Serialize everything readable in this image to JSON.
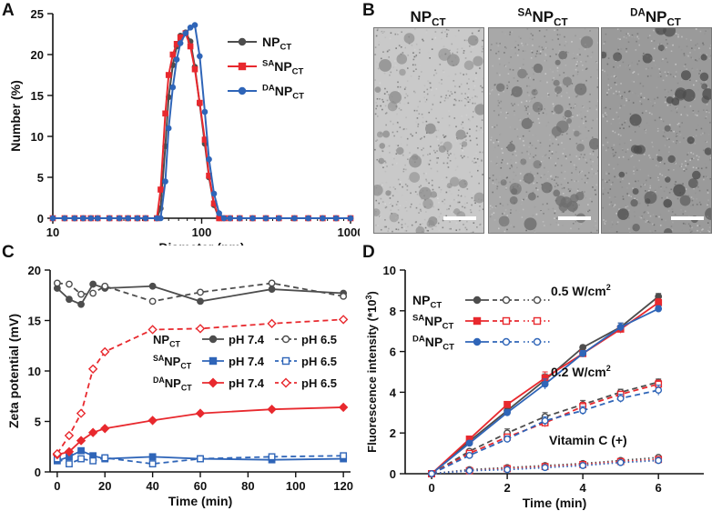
{
  "panels": {
    "a": {
      "label": "A"
    },
    "b": {
      "label": "B"
    },
    "c": {
      "label": "C"
    },
    "d": {
      "label": "D"
    }
  },
  "chart_data": [
    {
      "panel": "A",
      "type": "line",
      "xscale": "log",
      "xlabel": "Diameter (nm)",
      "ylabel": "Number (%)",
      "xlim": [
        10,
        1000
      ],
      "ylim": [
        0,
        25
      ],
      "xticks": [
        10,
        100,
        1000
      ],
      "yticks": [
        0,
        5,
        10,
        15,
        20,
        25
      ],
      "legend_position": "top-right",
      "series": [
        {
          "name": "NP",
          "sub": "CT",
          "sup": "",
          "color": "#4d4d4d",
          "x": [
            10,
            12,
            14,
            16,
            18,
            20,
            24,
            28,
            32,
            37,
            42,
            50,
            53,
            57,
            60,
            64,
            68,
            72,
            78,
            84,
            90,
            97,
            105,
            112,
            121,
            131,
            141,
            155,
            180,
            220,
            270,
            330,
            420,
            520,
            650,
            800,
            1000
          ],
          "y": [
            0,
            0,
            0,
            0,
            0,
            0,
            0,
            0,
            0,
            0,
            0,
            0,
            1.2,
            8.8,
            14.8,
            18.7,
            21.0,
            22.3,
            22.7,
            21.6,
            18.5,
            14.0,
            9.1,
            5.0,
            1.6,
            0,
            0,
            0,
            0,
            0,
            0,
            0,
            0,
            0,
            0,
            0,
            0
          ]
        },
        {
          "name": "NP",
          "sub": "CT",
          "sup": "SA",
          "color": "#e8292e",
          "x": [
            10,
            12,
            14,
            16,
            18,
            20,
            24,
            28,
            32,
            37,
            42,
            50,
            53,
            57,
            60,
            64,
            68,
            72,
            78,
            84,
            90,
            97,
            105,
            112,
            121,
            131,
            141,
            155,
            180,
            220,
            270,
            330,
            420,
            520,
            650,
            800,
            1000
          ],
          "y": [
            0,
            0,
            0,
            0,
            0,
            0,
            0,
            0,
            0,
            0,
            0,
            0,
            3.5,
            12.8,
            17.5,
            20.0,
            21.3,
            22.1,
            22.6,
            21.0,
            18.2,
            14.1,
            9.6,
            5.2,
            1.8,
            0,
            0,
            0,
            0,
            0,
            0,
            0,
            0,
            0,
            0,
            0,
            0
          ]
        },
        {
          "name": "NP",
          "sub": "CT",
          "sup": "DA",
          "color": "#2f65b8",
          "x": [
            10,
            12,
            14,
            16,
            18,
            20,
            24,
            28,
            32,
            37,
            42,
            50,
            53,
            57,
            60,
            64,
            68,
            72,
            78,
            84,
            90,
            97,
            105,
            112,
            121,
            131,
            141,
            155,
            180,
            220,
            270,
            330,
            420,
            520,
            650,
            800,
            1000
          ],
          "y": [
            0,
            0,
            0,
            0,
            0,
            0,
            0,
            0,
            0,
            0,
            0,
            0,
            0,
            4.5,
            11.0,
            16.0,
            19.4,
            21.4,
            22.6,
            23.3,
            23.6,
            19.8,
            13.0,
            7.2,
            3.0,
            0.6,
            0,
            0,
            0,
            0,
            0,
            0,
            0,
            0,
            0,
            0,
            0
          ]
        }
      ]
    },
    {
      "panel": "C",
      "type": "line",
      "xlabel": "Time (min)",
      "ylabel": "Zeta potential (mV)",
      "xlim": [
        -3,
        123
      ],
      "ylim": [
        0,
        20
      ],
      "xticks": [
        0,
        20,
        40,
        60,
        80,
        100,
        120
      ],
      "yticks": [
        0,
        5,
        10,
        15,
        20
      ],
      "legend_position": "center-right",
      "legend_rows": [
        {
          "name": "NP",
          "sub": "CT",
          "sup": "",
          "color": "#4d4d4d",
          "ph_a": "pH 7.4",
          "ph_b": "pH 6.5"
        },
        {
          "name": "NP",
          "sub": "CT",
          "sup": "SA",
          "color": "#2f65b8",
          "ph_a": "pH 7.4",
          "ph_b": "pH 6.5"
        },
        {
          "name": "NP",
          "sub": "CT",
          "sup": "DA",
          "color": "#e8292e",
          "ph_a": "pH 7.4",
          "ph_b": "pH 6.5"
        }
      ],
      "series": [
        {
          "name": "NPCT pH 7.4",
          "color": "#4d4d4d",
          "style": "solid",
          "marker": "circle",
          "filled": true,
          "x": [
            0,
            5,
            10,
            15,
            20,
            40,
            60,
            90,
            120
          ],
          "y": [
            18.2,
            17.1,
            16.6,
            18.6,
            18.2,
            18.4,
            16.9,
            18.1,
            17.7
          ]
        },
        {
          "name": "NPCT pH 6.5",
          "color": "#4d4d4d",
          "style": "dashed",
          "marker": "circle",
          "filled": false,
          "x": [
            0,
            5,
            10,
            15,
            20,
            40,
            60,
            90,
            120
          ],
          "y": [
            18.7,
            18.6,
            17.6,
            17.7,
            18.4,
            16.9,
            17.8,
            18.7,
            17.4
          ]
        },
        {
          "name": "SANPCT pH 7.4",
          "color": "#2f65b8",
          "style": "solid",
          "marker": "square",
          "filled": true,
          "x": [
            0,
            5,
            10,
            15,
            20,
            40,
            60,
            90,
            120
          ],
          "y": [
            1.1,
            1.5,
            2.1,
            1.6,
            1.3,
            1.5,
            1.3,
            1.2,
            1.3
          ]
        },
        {
          "name": "SANPCT pH 6.5",
          "color": "#2f65b8",
          "style": "dashed",
          "marker": "square",
          "filled": false,
          "x": [
            0,
            5,
            10,
            15,
            20,
            40,
            60,
            90,
            120
          ],
          "y": [
            1.3,
            0.8,
            1.3,
            1.1,
            1.4,
            0.8,
            1.3,
            1.5,
            1.6
          ]
        },
        {
          "name": "DANPCT pH 7.4",
          "color": "#e8292e",
          "style": "solid",
          "marker": "diamond",
          "filled": true,
          "x": [
            0,
            5,
            10,
            15,
            20,
            40,
            60,
            90,
            120
          ],
          "y": [
            1.7,
            2.0,
            3.1,
            3.9,
            4.3,
            5.1,
            5.8,
            6.2,
            6.4
          ]
        },
        {
          "name": "DANPCT pH 6.5",
          "color": "#e8292e",
          "style": "dashed",
          "marker": "diamond",
          "filled": false,
          "x": [
            0,
            5,
            10,
            15,
            20,
            40,
            60,
            90,
            120
          ],
          "y": [
            1.8,
            3.6,
            5.8,
            10.2,
            11.9,
            14.1,
            14.2,
            14.7,
            15.1
          ]
        }
      ]
    },
    {
      "panel": "D",
      "type": "line",
      "xlabel": "Time (min)",
      "ylabel": "Fluorescence intensity (*10",
      "ylabel_sup": "3",
      "ylabel_end": ")",
      "xlim": [
        -0.7,
        7.2
      ],
      "ylim": [
        0,
        10
      ],
      "xticks": [
        0,
        2,
        4,
        6
      ],
      "yticks": [
        0,
        2,
        4,
        6,
        8,
        10
      ],
      "legend_position": "top-left",
      "legend_rows": [
        {
          "name": "NP",
          "sub": "CT",
          "sup": "",
          "color": "#4d4d4d"
        },
        {
          "name": "NP",
          "sub": "CT",
          "sup": "SA",
          "color": "#e8292e"
        },
        {
          "name": "NP",
          "sub": "CT",
          "sup": "DA",
          "color": "#2f65b8"
        }
      ],
      "annotations": [
        {
          "text": "0.5 W/cm",
          "sup": "2"
        },
        {
          "text": "0.2 W/cm",
          "sup": "2"
        },
        {
          "text": "Vitamin C (+)",
          "sup": ""
        }
      ],
      "series": [
        {
          "name": "NPCT 0.5 W/cm2",
          "color": "#4d4d4d",
          "style": "solid",
          "marker": "circle",
          "filled": true,
          "x": [
            0,
            1,
            2,
            3,
            4,
            5,
            6
          ],
          "y": [
            0,
            1.6,
            3.1,
            4.6,
            6.2,
            7.2,
            8.7
          ],
          "err": [
            0,
            0.1,
            0.15,
            0.3,
            0.1,
            0.2,
            0.15
          ]
        },
        {
          "name": "SANPCT 0.5 W/cm2",
          "color": "#e8292e",
          "style": "solid",
          "marker": "square",
          "filled": true,
          "x": [
            0,
            1,
            2,
            3,
            4,
            5,
            6
          ],
          "y": [
            0,
            1.7,
            3.4,
            4.7,
            5.9,
            7.1,
            8.4
          ],
          "err": [
            0,
            0.1,
            0.1,
            0.3,
            0.15,
            0.2,
            0.2
          ]
        },
        {
          "name": "DANPCT 0.5 W/cm2",
          "color": "#2f65b8",
          "style": "solid",
          "marker": "circle",
          "filled": true,
          "x": [
            0,
            1,
            2,
            3,
            4,
            5,
            6
          ],
          "y": [
            0,
            1.5,
            3.0,
            4.4,
            5.9,
            7.2,
            8.1
          ],
          "err": [
            0,
            0.1,
            0.15,
            0.25,
            0.15,
            0.2,
            0.15
          ]
        },
        {
          "name": "NPCT 0.2 W/cm2",
          "color": "#4d4d4d",
          "style": "dashed",
          "marker": "circle",
          "filled": false,
          "x": [
            0,
            1,
            2,
            3,
            4,
            5,
            6
          ],
          "y": [
            0,
            1.1,
            2.0,
            2.8,
            3.4,
            4.0,
            4.5
          ],
          "err": [
            0,
            0.1,
            0.2,
            0.2,
            0.2,
            0.15,
            0.15
          ]
        },
        {
          "name": "SANPCT 0.2 W/cm2",
          "color": "#e8292e",
          "style": "dashed",
          "marker": "square",
          "filled": false,
          "x": [
            0,
            1,
            2,
            3,
            4,
            5,
            6
          ],
          "y": [
            0,
            1.0,
            1.8,
            2.5,
            3.3,
            3.9,
            4.4
          ],
          "err": [
            0,
            0.1,
            0.15,
            0.2,
            0.2,
            0.15,
            0.2
          ]
        },
        {
          "name": "DANPCT 0.2 W/cm2",
          "color": "#2f65b8",
          "style": "dashed",
          "marker": "circle",
          "filled": false,
          "x": [
            0,
            1,
            2,
            3,
            4,
            5,
            6
          ],
          "y": [
            0,
            0.9,
            1.7,
            2.6,
            3.1,
            3.7,
            4.1
          ],
          "err": [
            0,
            0.1,
            0.15,
            0.2,
            0.2,
            0.2,
            0.25
          ]
        },
        {
          "name": "NPCT Vitamin C",
          "color": "#4d4d4d",
          "style": "dotted",
          "marker": "circle",
          "filled": false,
          "x": [
            0,
            1,
            2,
            3,
            4,
            5,
            6
          ],
          "y": [
            0,
            0.2,
            0.3,
            0.4,
            0.5,
            0.65,
            0.8
          ],
          "err": [
            0,
            0.05,
            0.05,
            0.05,
            0.05,
            0.05,
            0.05
          ]
        },
        {
          "name": "SANPCT Vitamin C",
          "color": "#e8292e",
          "style": "dotted",
          "marker": "square",
          "filled": false,
          "x": [
            0,
            1,
            2,
            3,
            4,
            5,
            6
          ],
          "y": [
            0,
            0.15,
            0.25,
            0.35,
            0.45,
            0.6,
            0.7
          ],
          "err": [
            0,
            0.05,
            0.05,
            0.05,
            0.05,
            0.05,
            0.05
          ]
        },
        {
          "name": "DANPCT Vitamin C",
          "color": "#2f65b8",
          "style": "dotted",
          "marker": "circle",
          "filled": false,
          "x": [
            0,
            1,
            2,
            3,
            4,
            5,
            6
          ],
          "y": [
            0,
            0.15,
            0.2,
            0.3,
            0.4,
            0.55,
            0.65
          ],
          "err": [
            0,
            0.05,
            0.05,
            0.05,
            0.05,
            0.05,
            0.05
          ]
        }
      ]
    },
    {
      "panel": "B",
      "type": "image-panels",
      "images": [
        {
          "name": "NP",
          "sub": "CT",
          "sup": "",
          "seed": 11,
          "tone": "light"
        },
        {
          "name": "NP",
          "sub": "CT",
          "sup": "SA",
          "seed": 23,
          "tone": "medium"
        },
        {
          "name": "NP",
          "sub": "CT",
          "sup": "DA",
          "seed": 37,
          "tone": "dark"
        }
      ]
    }
  ]
}
